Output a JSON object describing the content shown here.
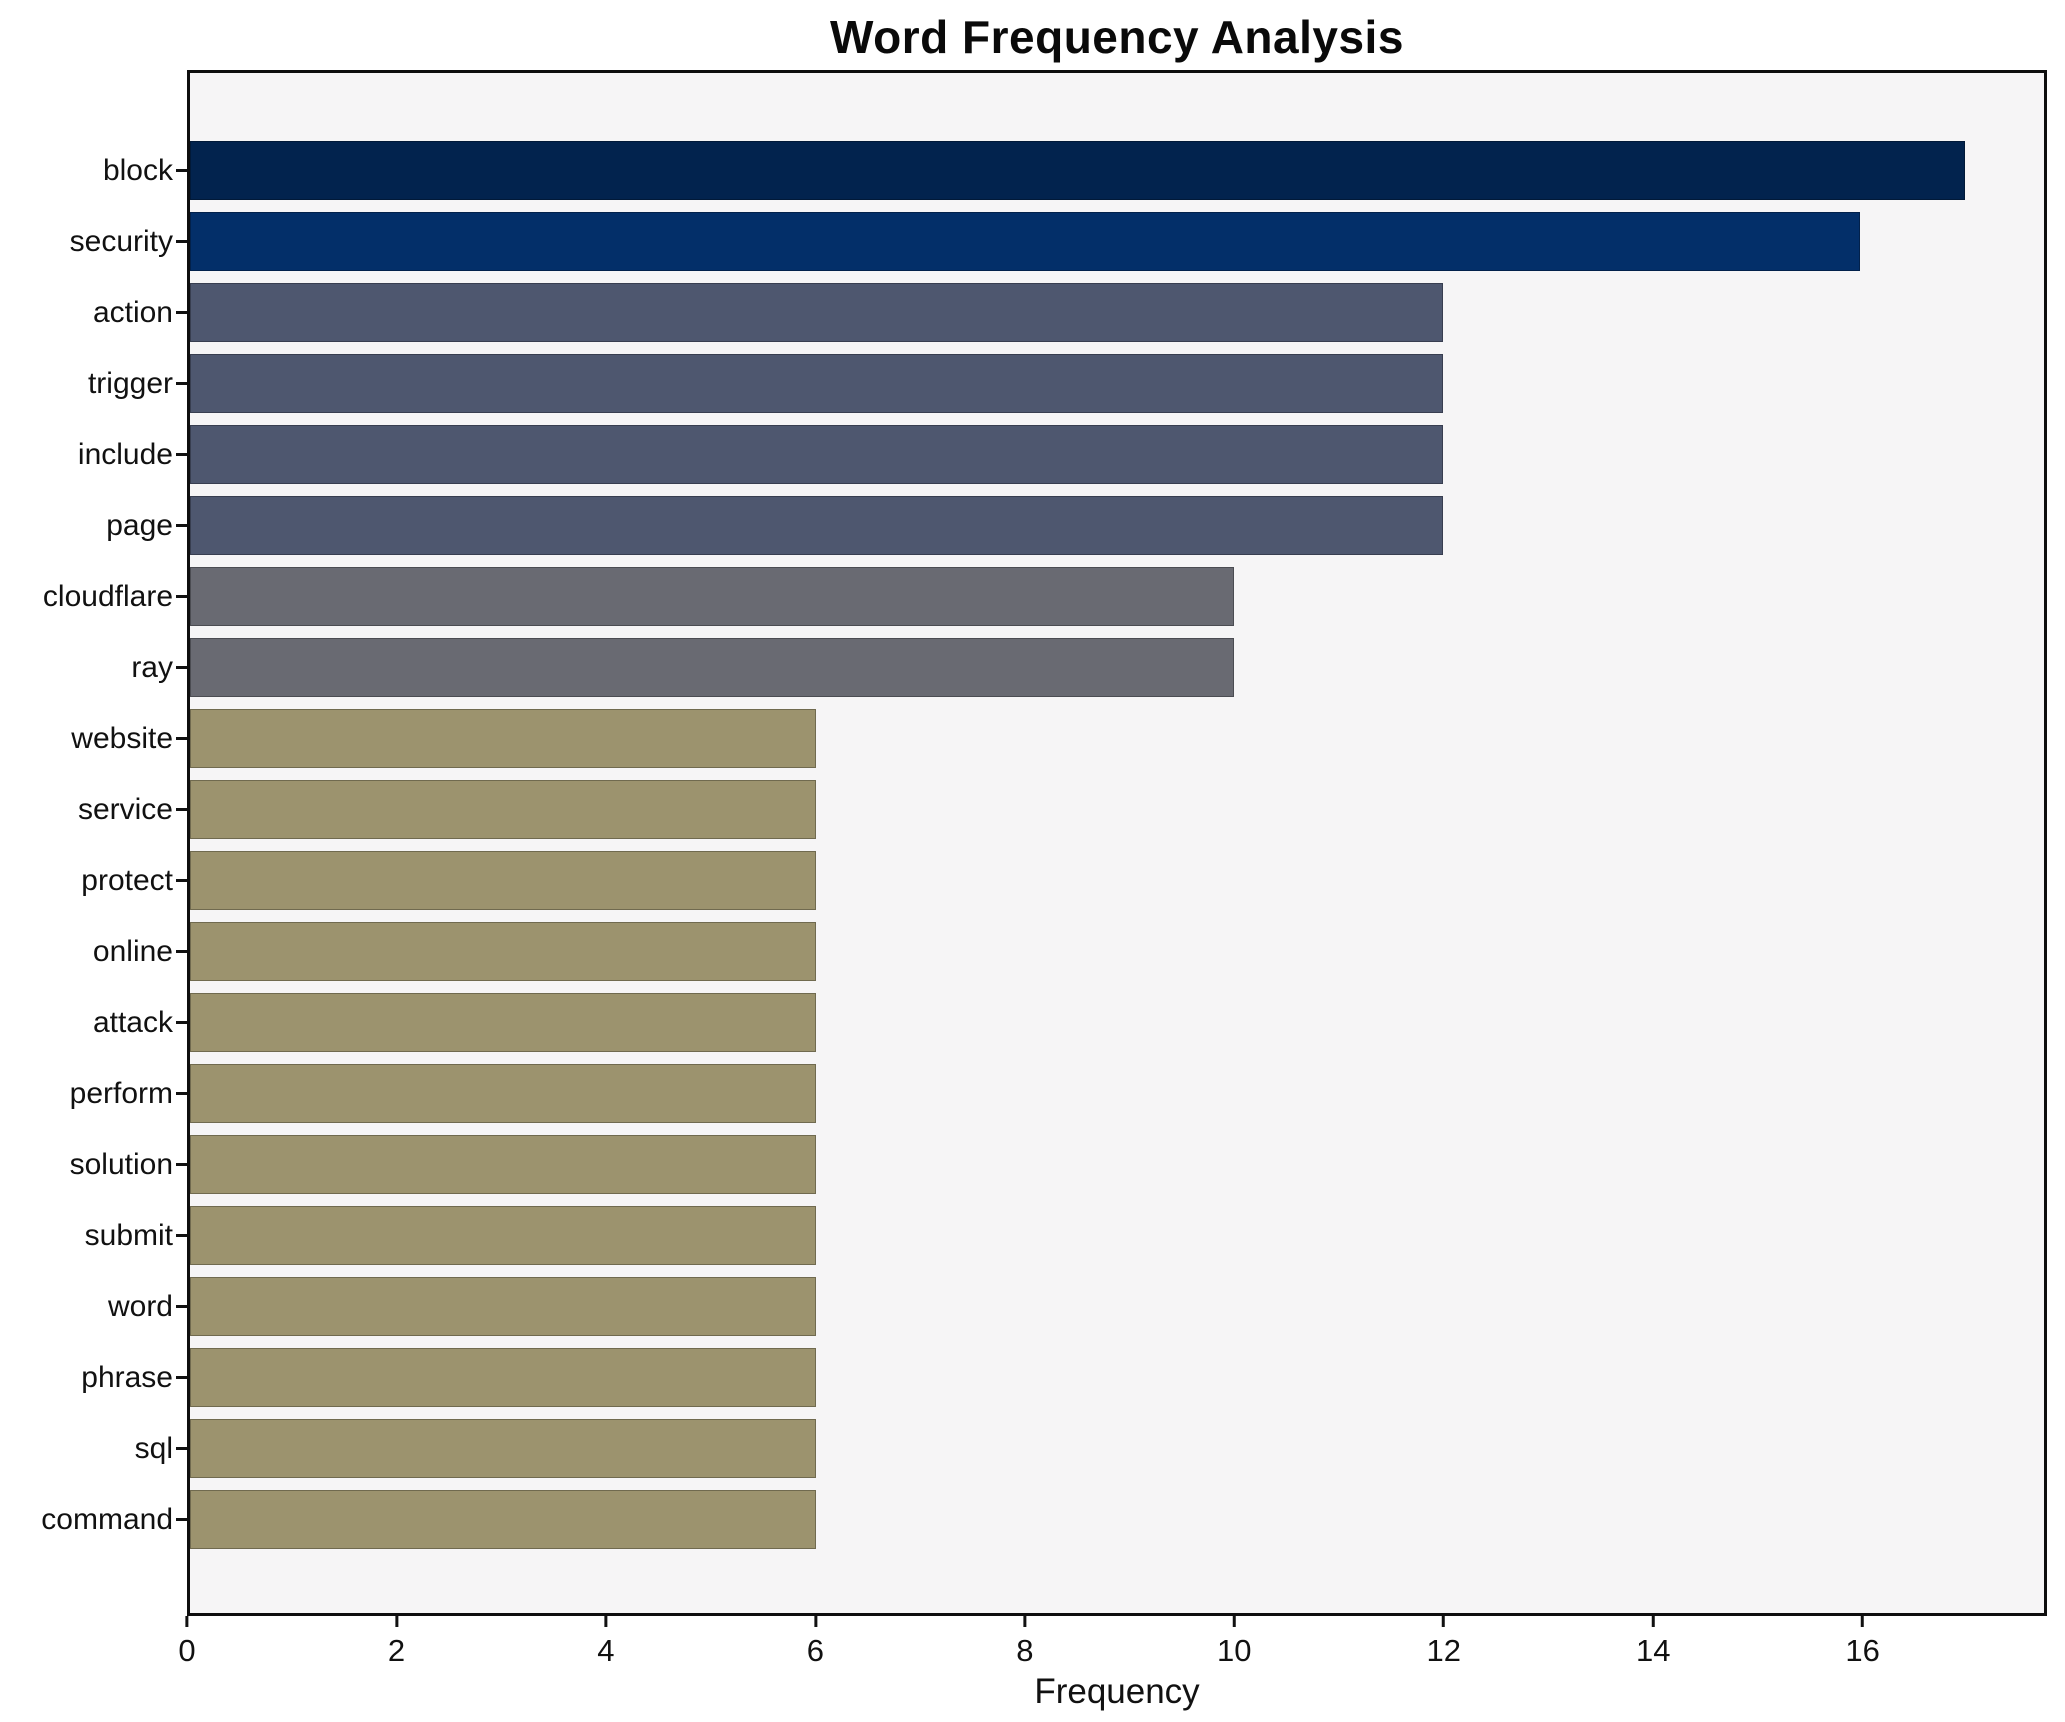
{
  "chart_data": {
    "type": "bar",
    "orientation": "horizontal",
    "title": "Word Frequency Analysis",
    "xlabel": "Frequency",
    "categories": [
      "block",
      "security",
      "action",
      "trigger",
      "include",
      "page",
      "cloudflare",
      "ray",
      "website",
      "service",
      "protect",
      "online",
      "attack",
      "perform",
      "solution",
      "submit",
      "word",
      "phrase",
      "sql",
      "command"
    ],
    "values": [
      17,
      16,
      12,
      12,
      12,
      12,
      10,
      10,
      6,
      6,
      6,
      6,
      6,
      6,
      6,
      6,
      6,
      6,
      6,
      6
    ],
    "bar_colors": [
      "#02234e",
      "#032f69",
      "#4e576f",
      "#4e576f",
      "#4e576f",
      "#4e576f",
      "#696a72",
      "#696a72",
      "#9c936e",
      "#9c936e",
      "#9c936e",
      "#9c936e",
      "#9c936e",
      "#9c936e",
      "#9c936e",
      "#9c936e",
      "#9c936e",
      "#9c936e",
      "#9c936e",
      "#9c936e"
    ],
    "xticks": [
      0,
      2,
      4,
      6,
      8,
      10,
      12,
      14,
      16
    ],
    "xlim": [
      0,
      17.76
    ],
    "grid": false,
    "legend": "none",
    "plot_background": "#f6f5f6",
    "figure_background": "#ffffff",
    "palette": {
      "navy_dark": "#02234e",
      "navy": "#032f69",
      "slate": "#4e576f",
      "gray": "#696a72",
      "khaki": "#9c936e"
    }
  }
}
